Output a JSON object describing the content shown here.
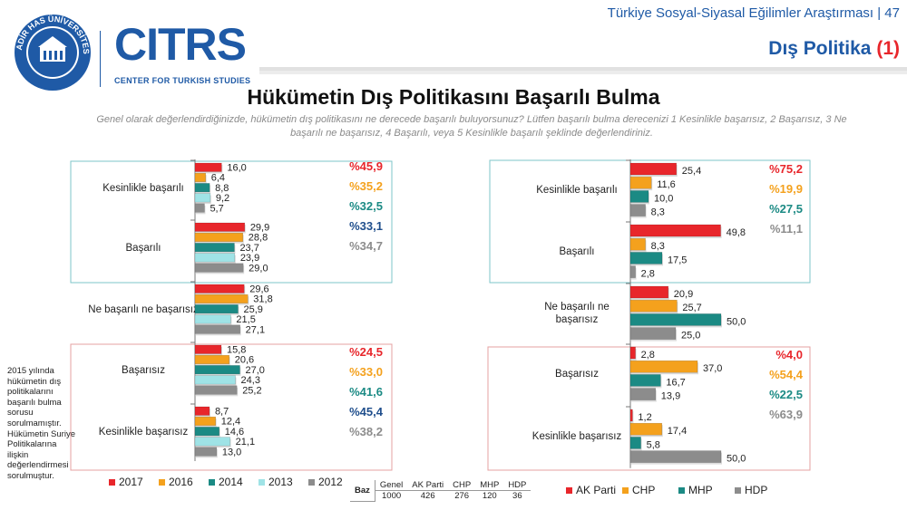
{
  "header": {
    "page_subtitle": "Türkiye Sosyal-Siyasal Eğilimler Araştırması | 47",
    "section_title": "Dış Politika",
    "section_number": "(1)",
    "logo_text": "CITRS",
    "logo_subtext": "CENTER FOR TURKISH STUDIES",
    "seal_text": "KADİR HAS ÜNİVERSİTESİ",
    "seal_year": "1997"
  },
  "title": "Hükümetin Dış Politikasını Başarılı Bulma",
  "question": "Genel olarak değerlendirdiğinizde, hükümetin dış politikasını ne derecede başarılı buluyorsunuz? Lütfen başarılı bulma derecenizi 1 Kesinlikle başarısız, 2 Başarısız, 3 Ne başarılı ne başarısız, 4 Başarılı, veya 5 Kesinlikle başarılı şeklinde değerlendiriniz.",
  "side_note": "2015 yılında hükümetin dış politikalarını başarılı bulma sorusu sorulmamıştır. Hükümetin Suriye Politikalarına ilişkin değerlendirmesi sorulmuştur.",
  "base_table": {
    "label": "Baz",
    "headers": [
      "Genel",
      "AK Parti",
      "CHP",
      "MHP",
      "HDP"
    ],
    "values": [
      "1000",
      "426",
      "276",
      "120",
      "36"
    ]
  },
  "colors": {
    "red": "#e8262b",
    "orange": "#f4a11d",
    "teal": "#1b8a84",
    "light_teal": "#9fe3e6",
    "gray": "#8c8c8c",
    "brand_blue": "#1f5aa6",
    "box_teal": "#7ec5c8",
    "box_red": "#e6a0a0",
    "total_blue": "#1f4e8c"
  },
  "chart_data": [
    {
      "type": "bar",
      "orientation": "horizontal",
      "categories": [
        "Kesinlikle başarılı",
        "Başarılı",
        "Ne başarılı ne başarısız",
        "Başarısız",
        "Kesinlikle başarısız"
      ],
      "series": [
        {
          "name": "2017",
          "color": "#e8262b",
          "values": [
            16.0,
            29.9,
            29.6,
            15.8,
            8.7
          ]
        },
        {
          "name": "2016",
          "color": "#f4a11d",
          "values": [
            6.4,
            28.8,
            31.8,
            20.6,
            12.4
          ]
        },
        {
          "name": "2014",
          "color": "#1b8a84",
          "values": [
            8.8,
            23.7,
            25.9,
            27.0,
            14.6
          ]
        },
        {
          "name": "2013",
          "color": "#9fe3e6",
          "values": [
            9.2,
            23.9,
            21.5,
            24.3,
            21.1
          ]
        },
        {
          "name": "2012",
          "color": "#8c8c8c",
          "values": [
            5.7,
            29.0,
            27.1,
            25.2,
            13.0
          ]
        }
      ],
      "value_labels": [
        [
          "16,0",
          "6,4",
          "8,8",
          "9,2",
          "5,7"
        ],
        [
          "29,9",
          "28,8",
          "23,7",
          "23,9",
          "29,0"
        ],
        [
          "29,6",
          "31,8",
          "25,9",
          "21,5",
          "27,1"
        ],
        [
          "15,8",
          "20,6",
          "27,0",
          "24,3",
          "25,2"
        ],
        [
          "8,7",
          "12,4",
          "14,6",
          "21,1",
          "13,0"
        ]
      ],
      "totals": {
        "successful": [
          {
            "label": "%45,9",
            "color": "#e8262b"
          },
          {
            "label": "%35,2",
            "color": "#f4a11d"
          },
          {
            "label": "%32,5",
            "color": "#1b8a84"
          },
          {
            "label": "%33,1",
            "color": "#1f4e8c"
          },
          {
            "label": "%34,7",
            "color": "#8c8c8c"
          }
        ],
        "unsuccessful": [
          {
            "label": "%24,5",
            "color": "#e8262b"
          },
          {
            "label": "%33,0",
            "color": "#f4a11d"
          },
          {
            "label": "%41,6",
            "color": "#1b8a84"
          },
          {
            "label": "%45,4",
            "color": "#1f4e8c"
          },
          {
            "label": "%38,2",
            "color": "#8c8c8c"
          }
        ]
      },
      "legend": [
        "2017",
        "2016",
        "2014",
        "2013",
        "2012"
      ],
      "xlim": [
        0,
        50
      ],
      "grid": false,
      "legend_position": "bottom"
    },
    {
      "type": "bar",
      "orientation": "horizontal",
      "categories": [
        "Kesinlikle başarılı",
        "Başarılı",
        "Ne başarılı ne başarısız",
        "Başarısız",
        "Kesinlikle başarısız"
      ],
      "series": [
        {
          "name": "AK Parti",
          "color": "#e8262b",
          "values": [
            25.4,
            49.8,
            20.9,
            2.8,
            1.2
          ]
        },
        {
          "name": "CHP",
          "color": "#f4a11d",
          "values": [
            11.6,
            8.3,
            25.7,
            37.0,
            17.4
          ]
        },
        {
          "name": "MHP",
          "color": "#1b8a84",
          "values": [
            10.0,
            17.5,
            50.0,
            16.7,
            5.8
          ]
        },
        {
          "name": "HDP",
          "color": "#8c8c8c",
          "values": [
            8.3,
            2.8,
            25.0,
            13.9,
            50.0
          ]
        }
      ],
      "value_labels": [
        [
          "25,4",
          "11,6",
          "10,0",
          "8,3"
        ],
        [
          "49,8",
          "8,3",
          "17,5",
          "2,8"
        ],
        [
          "20,9",
          "25,7",
          "50,0",
          "25,0"
        ],
        [
          "2,8",
          "37,0",
          "16,7",
          "13,9"
        ],
        [
          "1,2",
          "17,4",
          "5,8",
          "50,0"
        ]
      ],
      "totals": {
        "successful": [
          {
            "label": "%75,2",
            "color": "#e8262b"
          },
          {
            "label": "%19,9",
            "color": "#f4a11d"
          },
          {
            "label": "%27,5",
            "color": "#1b8a84"
          },
          {
            "label": "%11,1",
            "color": "#8c8c8c"
          }
        ],
        "unsuccessful": [
          {
            "label": "%4,0",
            "color": "#e8262b"
          },
          {
            "label": "%54,4",
            "color": "#f4a11d"
          },
          {
            "label": "%22,5",
            "color": "#1b8a84"
          },
          {
            "label": "%63,9",
            "color": "#8c8c8c"
          }
        ]
      },
      "legend": [
        "AK Parti",
        "CHP",
        "MHP",
        "HDP"
      ],
      "xlim": [
        0,
        50
      ],
      "grid": false,
      "legend_position": "bottom"
    }
  ]
}
